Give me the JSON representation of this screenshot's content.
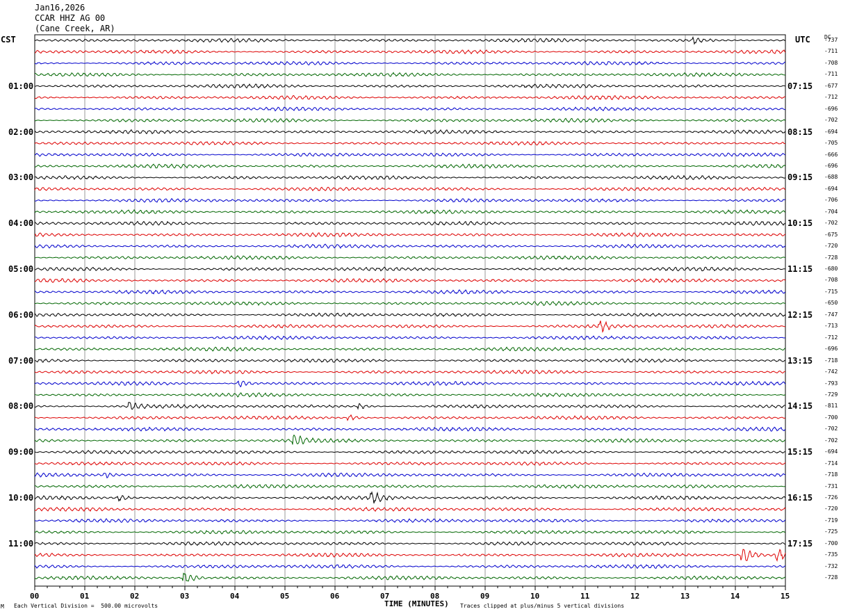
{
  "header": {
    "date": "Jan16,2026",
    "station": "CCAR HHZ AG 00",
    "location": "(Cane Creek, AR)"
  },
  "left_axis_label": "CST",
  "right_axis_label": "UTC",
  "dc_label": "DC",
  "footer": {
    "scale_marker": "M",
    "scale_note": "Each Vertical Division =  500.00 microvolts",
    "clip_note": "Traces clipped at plus/minus 5 vertical divisions"
  },
  "chart_data": {
    "type": "line",
    "subtype": "helicorder",
    "xlabel": "TIME (MINUTES)",
    "xlim": [
      0,
      15
    ],
    "x_ticks": [
      "00",
      "01",
      "02",
      "03",
      "04",
      "05",
      "06",
      "07",
      "08",
      "09",
      "10",
      "11",
      "12",
      "13",
      "14",
      "15"
    ],
    "left_hour_labels": [
      "01:00",
      "02:00",
      "03:00",
      "04:00",
      "05:00",
      "06:00",
      "07:00",
      "08:00",
      "09:00",
      "10:00",
      "11:00"
    ],
    "right_hour_labels": [
      "07:15",
      "08:15",
      "09:15",
      "10:15",
      "11:15",
      "12:15",
      "13:15",
      "14:15",
      "15:15",
      "16:15",
      "17:15"
    ],
    "trace_colors": [
      "#000000",
      "#dd0000",
      "#0000cc",
      "#006600"
    ],
    "dc_offsets": [
      -737,
      -711,
      -708,
      -711,
      -677,
      -712,
      -696,
      -702,
      -694,
      -705,
      -666,
      -696,
      -688,
      -694,
      -706,
      -704,
      -702,
      -675,
      -720,
      -728,
      -680,
      -708,
      -715,
      -650,
      -747,
      -713,
      -712,
      -696,
      -718,
      -742,
      -793,
      -729,
      -811,
      -700,
      -702,
      -702,
      -694,
      -714,
      -718,
      -731,
      -726,
      -720,
      -719,
      -725,
      -700,
      -735,
      -732,
      -728
    ],
    "events": [
      {
        "trace": 0,
        "minute": 13.2,
        "amp": 2.0
      },
      {
        "trace": 25,
        "minute": 11.3,
        "amp": 4.0
      },
      {
        "trace": 30,
        "minute": 4.1,
        "amp": 2.5
      },
      {
        "trace": 32,
        "minute": 1.9,
        "amp": 3.0
      },
      {
        "trace": 32,
        "minute": 6.5,
        "amp": 1.8
      },
      {
        "trace": 33,
        "minute": 6.3,
        "amp": 2.0
      },
      {
        "trace": 35,
        "minute": 5.2,
        "amp": 4.5
      },
      {
        "trace": 38,
        "minute": 1.4,
        "amp": 1.8
      },
      {
        "trace": 40,
        "minute": 1.7,
        "amp": 2.0
      },
      {
        "trace": 40,
        "minute": 6.75,
        "amp": 4.0
      },
      {
        "trace": 45,
        "minute": 14.15,
        "amp": 6.0
      },
      {
        "trace": 45,
        "minute": 14.85,
        "amp": 4.0
      },
      {
        "trace": 47,
        "minute": 3.0,
        "amp": 5.0
      }
    ]
  }
}
